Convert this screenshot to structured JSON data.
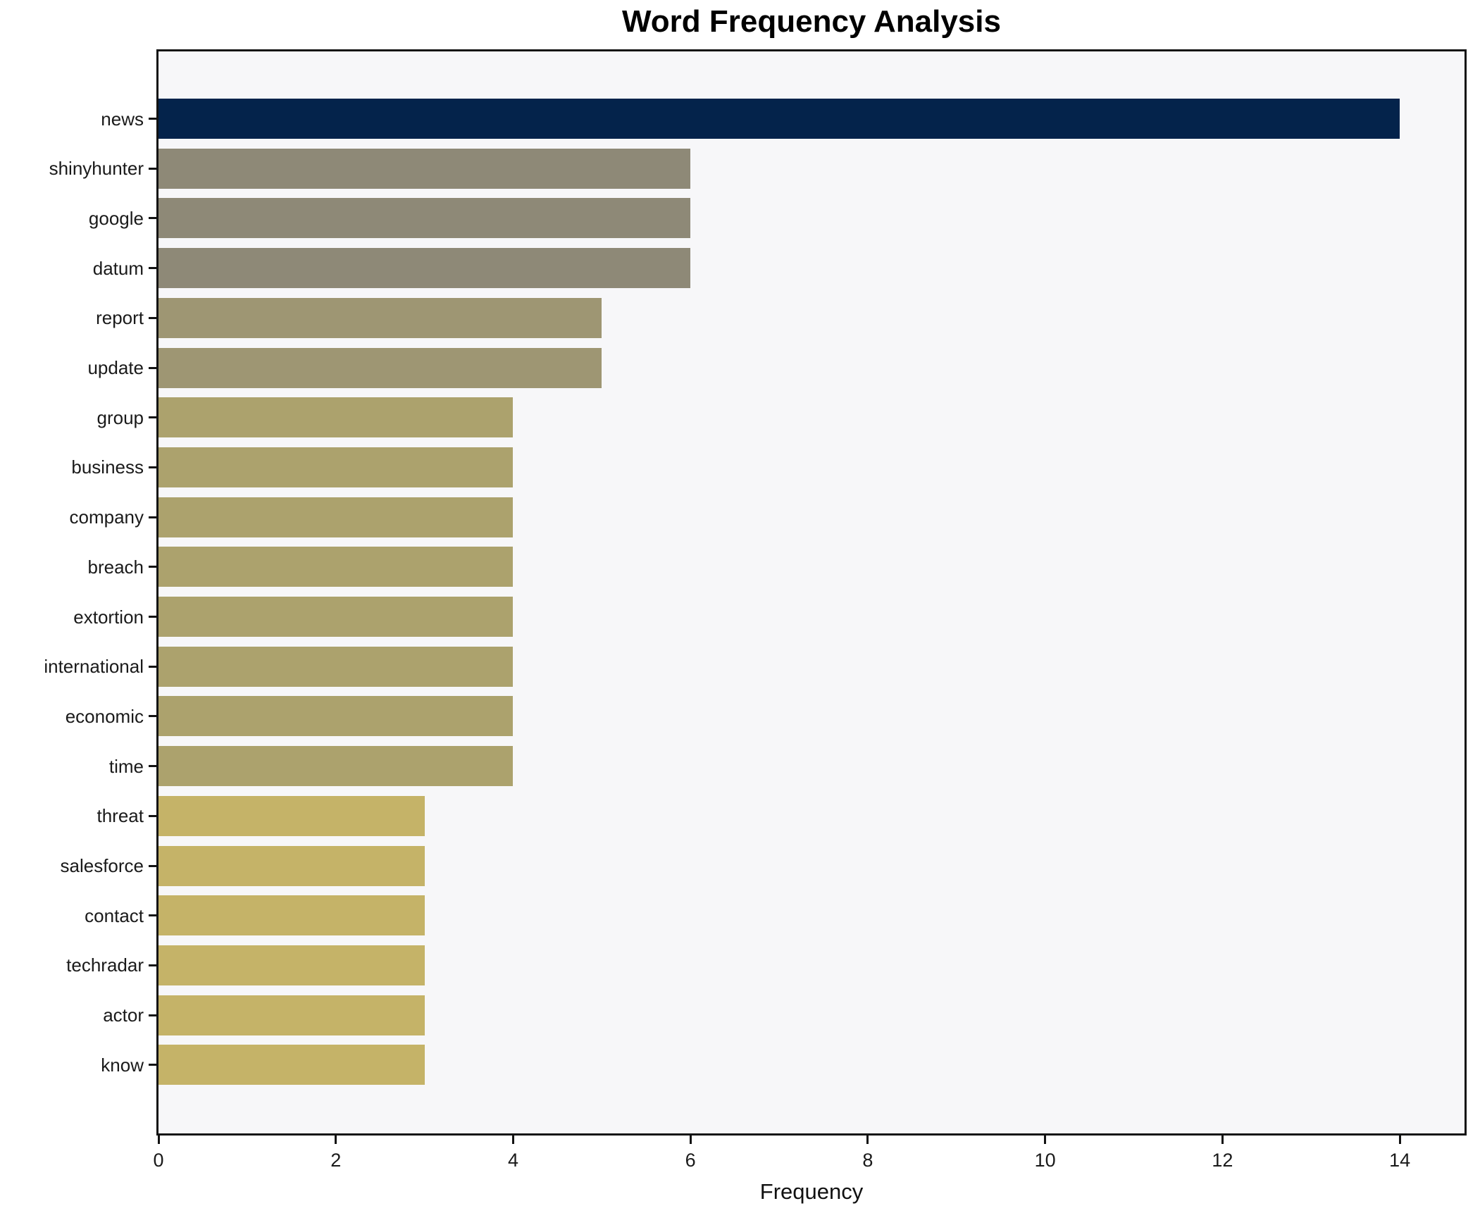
{
  "chart_data": {
    "type": "bar",
    "orientation": "horizontal",
    "title": "Word Frequency Analysis",
    "xlabel": "Frequency",
    "ylabel": "",
    "categories": [
      "news",
      "shinyhunter",
      "google",
      "datum",
      "report",
      "update",
      "group",
      "business",
      "company",
      "breach",
      "extortion",
      "international",
      "economic",
      "time",
      "threat",
      "salesforce",
      "contact",
      "techradar",
      "actor",
      "know"
    ],
    "values": [
      14,
      6,
      6,
      6,
      5,
      5,
      4,
      4,
      4,
      4,
      4,
      4,
      4,
      4,
      3,
      3,
      3,
      3,
      3,
      3
    ],
    "bar_colors": [
      "#04234b",
      "#8e8977",
      "#8e8977",
      "#8e8977",
      "#9e9673",
      "#9e9673",
      "#aca26d",
      "#aca26d",
      "#aca26d",
      "#aca26d",
      "#aca26d",
      "#aca26d",
      "#aca26d",
      "#aca26d",
      "#c5b368",
      "#c5b368",
      "#c5b368",
      "#c5b368",
      "#c5b368",
      "#c5b368"
    ],
    "x_ticks": [
      0,
      2,
      4,
      6,
      8,
      10,
      12,
      14
    ],
    "xlim": [
      0,
      14.73
    ],
    "grid": false,
    "legend": false
  },
  "colors": {
    "plot_background": "#f7f7f9",
    "figure_background": "#ffffff",
    "spine": "#131313",
    "tick_text": "#1a1a1a",
    "title_text": "#000000",
    "max_bar": "#04234b"
  }
}
